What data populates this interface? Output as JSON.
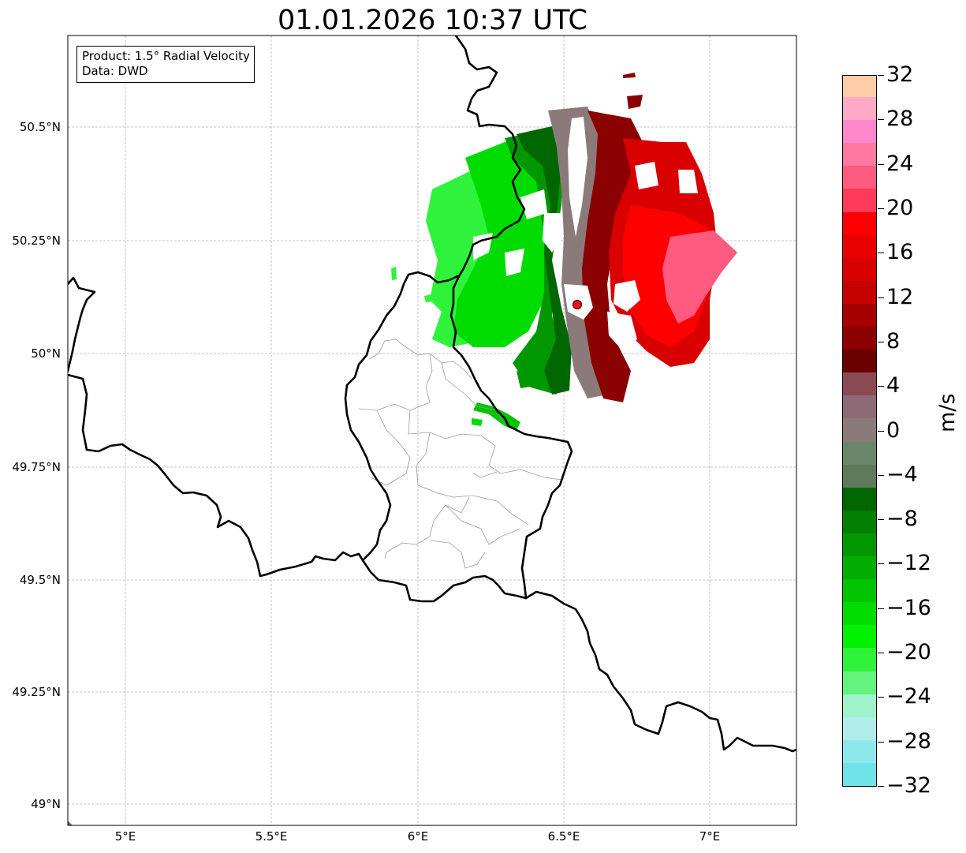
{
  "title": "01.01.2026 10:37 UTC",
  "info_box": {
    "product": "Product: 1.5° Radial Velocity",
    "source": "Data: DWD"
  },
  "map": {
    "lon_ticks": [
      "5°E",
      "5.5°E",
      "6°E",
      "6.5°E",
      "7°E"
    ],
    "lat_ticks": [
      "50.5°N",
      "50.25°N",
      "50°N",
      "49.75°N",
      "49.5°N",
      "49.25°N",
      "49°N"
    ],
    "grid": "dashed light gray",
    "radar_site_color": "#e8141c"
  },
  "colorbar": {
    "label": "m/s",
    "min": -32,
    "max": 32,
    "tick_labels": [
      "32",
      "28",
      "24",
      "20",
      "16",
      "12",
      "8",
      "4",
      "0",
      "−4",
      "−8",
      "−12",
      "−16",
      "−20",
      "−24",
      "−28",
      "−32"
    ],
    "colors_bottom_to_top": [
      "#6ee3e8",
      "#8de8ec",
      "#b0ece9",
      "#9ff2c9",
      "#63f27d",
      "#2ff33a",
      "#00f200",
      "#00db00",
      "#00c400",
      "#00ad00",
      "#009700",
      "#007f00",
      "#006600",
      "#5e7a5a",
      "#6b856a",
      "#8a7a7a",
      "#8c6a76",
      "#8a4a52",
      "#6a0000",
      "#8b0000",
      "#a60000",
      "#c40000",
      "#d80000",
      "#e80000",
      "#ff0000",
      "#ff3a5a",
      "#ff5a80",
      "#ff78a0",
      "#ff88cc",
      "#ffaac6",
      "#ffccaa"
    ]
  }
}
